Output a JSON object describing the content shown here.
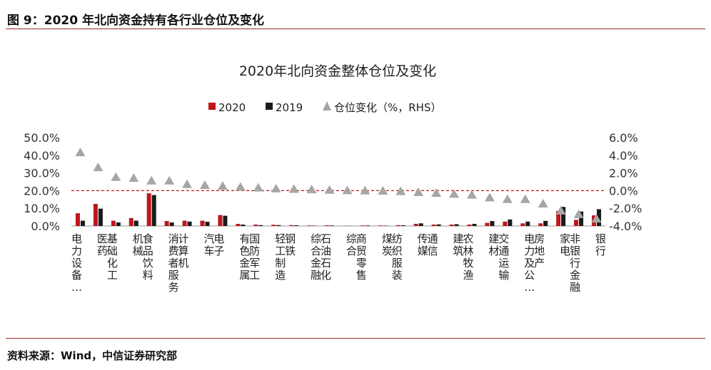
{
  "figure_label": "图 9：2020 年北向资金持有各行业仓位及变化",
  "source": "资料来源：Wind，中信证券研究部",
  "colors": {
    "s2020": "#c0151c",
    "s2019": "#1a1a1a",
    "change": "#a6a6a6",
    "refline": "#c0151c"
  },
  "chart_data": {
    "type": "bar",
    "title": "2020年北向资金整体仓位及变化",
    "legend_position": "top-center",
    "grid": false,
    "categories": [
      "电力设备…",
      "医药",
      "基础化工",
      "机械",
      "食品饮料",
      "消费者服务",
      "计算机",
      "汽车",
      "电子",
      "有色金属",
      "国防军工",
      "轻工制造",
      "钢铁",
      "综合金融",
      "石油石化",
      "综合",
      "商贸零售",
      "煤炭",
      "纺织服装",
      "传媒",
      "通信",
      "建筑",
      "农林牧渔",
      "建材",
      "交通运输",
      "电力及公…",
      "房地产",
      "家电",
      "非银行金融",
      "银行"
    ],
    "left_axis": {
      "ticks": [
        "50.0%",
        "40.0%",
        "30.0%",
        "20.0%",
        "10.0%",
        "0.0%"
      ],
      "values": [
        50,
        40,
        30,
        20,
        10,
        0
      ],
      "ylim": [
        0,
        50
      ]
    },
    "right_axis": {
      "ticks": [
        "6.0%",
        "4.0%",
        "2.0%",
        "0.0%",
        "-2.0%",
        "-4.0%"
      ],
      "values": [
        6,
        4,
        2,
        0,
        -2,
        -4
      ],
      "ylim": [
        -4,
        6
      ]
    },
    "series": [
      {
        "name": "2020",
        "kind": "bar",
        "axis": "left",
        "values": [
          7.2,
          12.5,
          3.0,
          4.5,
          18.5,
          2.8,
          3.0,
          3.0,
          6.2,
          1.2,
          0.8,
          0.7,
          0.5,
          0.3,
          0.4,
          0.1,
          0.3,
          0.3,
          0.5,
          1.2,
          0.8,
          0.8,
          0.8,
          1.8,
          2.5,
          1.5,
          1.5,
          8.5,
          3.5,
          6.0
        ]
      },
      {
        "name": "2019",
        "kind": "bar",
        "axis": "left",
        "values": [
          3.0,
          9.8,
          2.0,
          3.0,
          17.5,
          2.0,
          2.5,
          2.4,
          5.8,
          0.8,
          0.5,
          0.5,
          0.4,
          0.2,
          0.3,
          0.1,
          0.3,
          0.2,
          0.4,
          1.5,
          0.9,
          1.0,
          1.2,
          2.8,
          3.7,
          2.5,
          2.9,
          10.8,
          8.2,
          9.5
        ]
      },
      {
        "name": "仓位变化（%，RHS）",
        "kind": "triangle",
        "axis": "right",
        "values": [
          4.3,
          2.6,
          1.5,
          1.4,
          1.1,
          1.1,
          0.7,
          0.6,
          0.5,
          0.4,
          0.3,
          0.2,
          0.15,
          0.1,
          0.05,
          0.0,
          -0.02,
          -0.05,
          -0.1,
          -0.2,
          -0.3,
          -0.4,
          -0.5,
          -0.8,
          -1.0,
          -1.0,
          -1.5,
          -2.3,
          -2.7,
          -3.2
        ]
      }
    ],
    "reference_line": {
      "axis": "right",
      "value": 0.0,
      "style": "dashed"
    }
  }
}
